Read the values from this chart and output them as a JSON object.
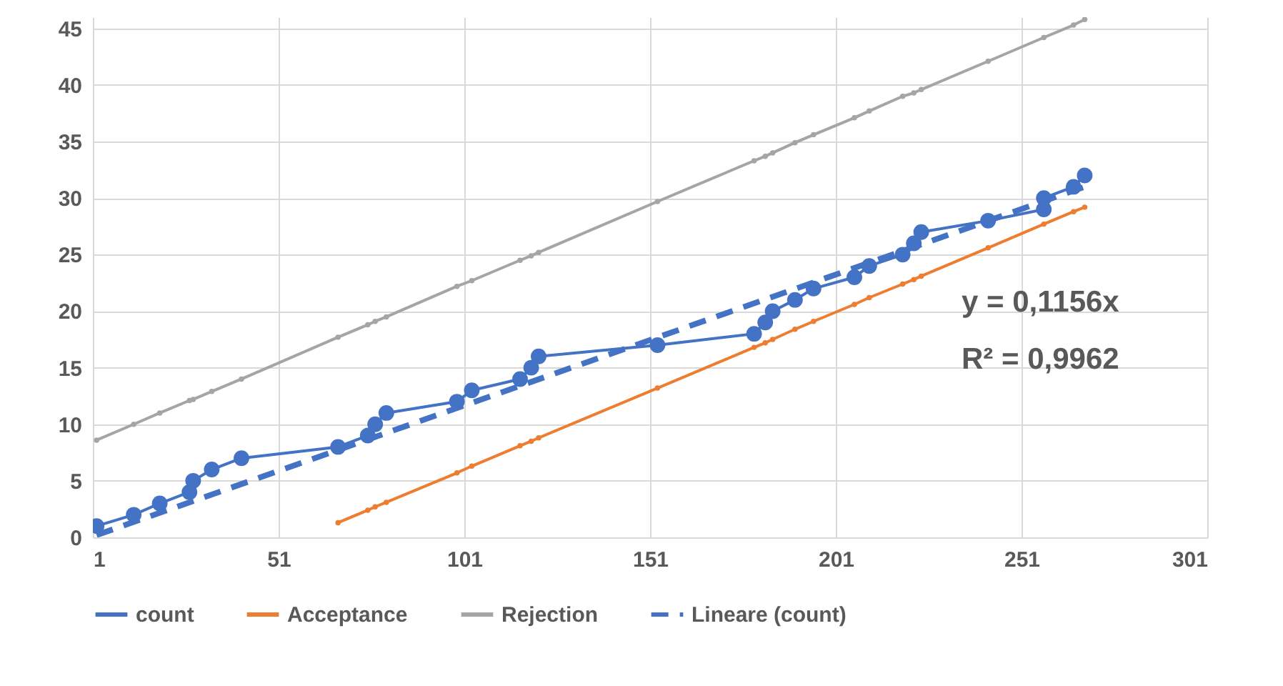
{
  "chart_data": {
    "type": "line",
    "xlim": [
      1,
      301
    ],
    "xticks": [
      1,
      51,
      101,
      151,
      201,
      251,
      301
    ],
    "ylim": [
      0,
      46
    ],
    "yticks": [
      0,
      5,
      10,
      15,
      20,
      25,
      30,
      35,
      40,
      45
    ],
    "grid": true,
    "legend": "bottom",
    "annotations": [
      "y = 0,1156x",
      "R² = 0,9962"
    ],
    "series": [
      {
        "name": "count",
        "color": "#4472c4",
        "marker": "circle",
        "line_style": "solid",
        "x": [
          2,
          12,
          19,
          27,
          28,
          33,
          41,
          67,
          75,
          77,
          80,
          99,
          103,
          116,
          119,
          121,
          153,
          179,
          182,
          184,
          190,
          195,
          206,
          210,
          219,
          222,
          224,
          242,
          257,
          257,
          265,
          268
        ],
        "values": [
          1,
          2,
          3,
          4,
          5,
          6,
          7,
          8,
          9,
          10,
          11,
          12,
          13,
          14,
          15,
          16,
          17,
          18,
          19,
          20,
          21,
          22,
          23,
          24,
          25,
          26,
          27,
          28,
          29,
          30,
          31,
          32
        ]
      },
      {
        "name": "Acceptance",
        "color": "#ed7d31",
        "marker": "circle",
        "line_style": "solid",
        "x": [
          67,
          75,
          77,
          80,
          99,
          103,
          116,
          119,
          121,
          153,
          179,
          182,
          184,
          190,
          195,
          206,
          210,
          219,
          222,
          224,
          242,
          257,
          265,
          268
        ],
        "values": [
          1.3,
          2.4,
          2.7,
          3.1,
          5.7,
          6.3,
          8.1,
          8.5,
          8.8,
          13.2,
          16.8,
          17.2,
          17.5,
          18.4,
          19.1,
          20.6,
          21.2,
          22.4,
          22.8,
          23.1,
          25.6,
          27.7,
          28.8,
          29.2
        ]
      },
      {
        "name": "Rejection",
        "color": "#a5a5a5",
        "marker": "circle",
        "line_style": "solid",
        "x": [
          2,
          12,
          19,
          27,
          28,
          33,
          41,
          67,
          75,
          77,
          80,
          99,
          103,
          116,
          119,
          121,
          153,
          179,
          182,
          184,
          190,
          195,
          206,
          210,
          219,
          222,
          224,
          242,
          257,
          265,
          268
        ],
        "values": [
          8.6,
          10.0,
          11.0,
          12.1,
          12.2,
          12.9,
          14.0,
          17.7,
          18.8,
          19.1,
          19.5,
          22.2,
          22.7,
          24.5,
          24.9,
          25.2,
          29.7,
          33.3,
          33.7,
          34.0,
          34.9,
          35.6,
          37.1,
          37.7,
          39.0,
          39.3,
          39.6,
          42.1,
          44.2,
          45.3,
          45.8
        ]
      },
      {
        "name": "Lineare (count)",
        "color": "#4472c4",
        "marker": "none",
        "line_style": "dashed",
        "x": [
          2,
          268
        ],
        "values": [
          0.2,
          31.0
        ]
      }
    ]
  }
}
